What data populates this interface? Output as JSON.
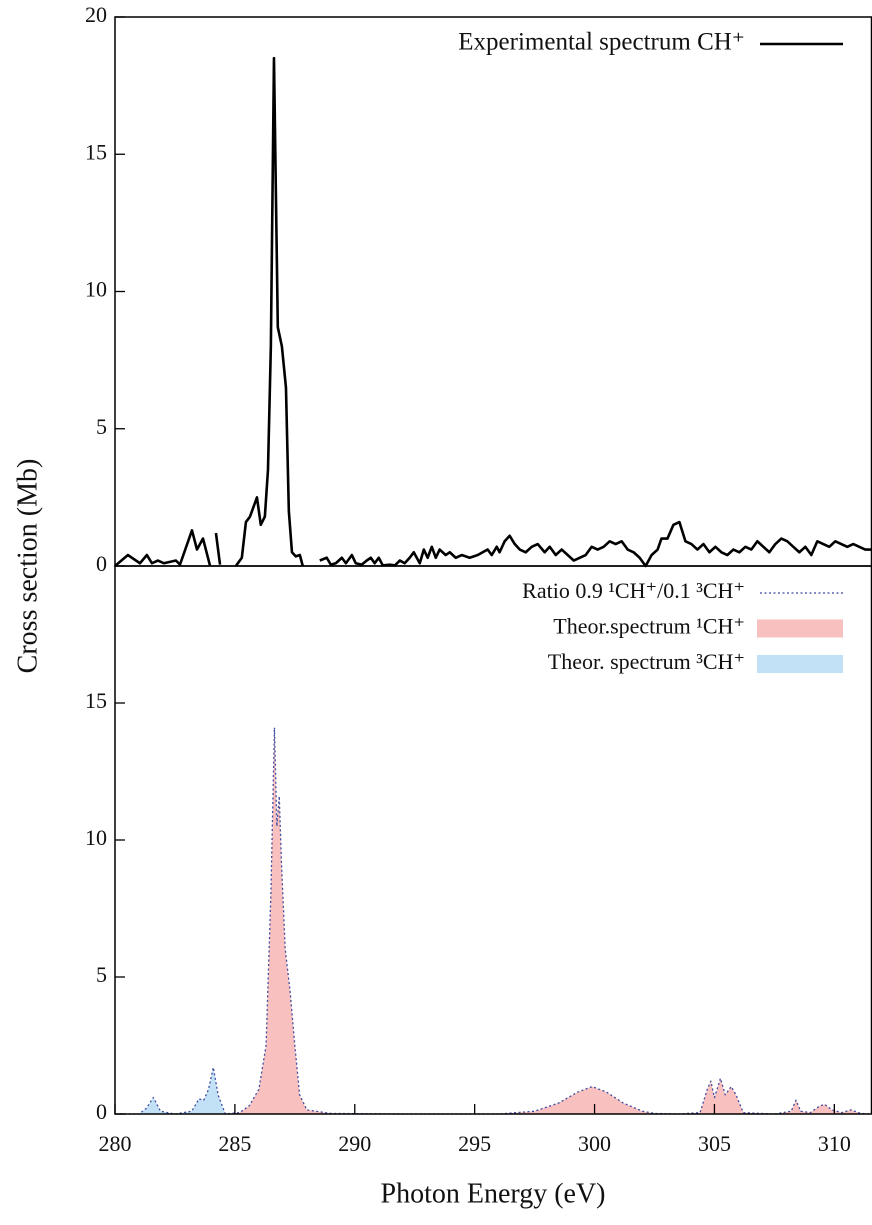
{
  "chart_data": [
    {
      "type": "line",
      "ylabel": "Cross section (Mb)",
      "xlim": [
        280,
        311.55
      ],
      "ylim": [
        0,
        20
      ],
      "yticks": [
        0,
        5,
        10,
        15,
        20
      ],
      "legend": "upper right",
      "x": [
        280,
        280.54,
        281.04,
        281.33,
        281.54,
        281.79,
        282.04,
        282.29,
        282.54,
        282.71,
        283.21,
        283.42,
        283.67,
        283.96,
        284.1,
        284.21,
        284.38,
        284.7,
        285.04,
        285.29,
        285.46,
        285.63,
        285.92,
        286.08,
        286.25,
        286.38,
        286.5,
        286.63,
        286.79,
        286.96,
        287.13,
        287.25,
        287.38,
        287.54,
        287.71,
        287.83,
        288.2,
        288.54,
        288.83,
        289,
        289.21,
        289.46,
        289.63,
        289.88,
        290.04,
        290.29,
        290.5,
        290.67,
        290.83,
        291,
        291.17,
        291.46,
        291.67,
        291.88,
        292.08,
        292.29,
        292.46,
        292.71,
        292.88,
        293.04,
        293.21,
        293.38,
        293.54,
        293.79,
        293.96,
        294.21,
        294.46,
        294.79,
        295.13,
        295.54,
        295.71,
        295.92,
        296.04,
        296.25,
        296.46,
        296.67,
        296.88,
        297.13,
        297.38,
        297.63,
        297.92,
        298.13,
        298.38,
        298.63,
        298.88,
        299.13,
        299.38,
        299.63,
        299.88,
        300.13,
        300.38,
        300.63,
        300.88,
        301.13,
        301.38,
        301.63,
        301.88,
        302.13,
        302.38,
        302.63,
        302.79,
        303.04,
        303.29,
        303.54,
        303.79,
        304.04,
        304.29,
        304.54,
        304.79,
        305.04,
        305.29,
        305.54,
        305.79,
        306.04,
        306.29,
        306.54,
        306.79,
        307.04,
        307.29,
        307.54,
        307.79,
        308.04,
        308.29,
        308.54,
        308.79,
        309.04,
        309.29,
        309.54,
        309.79,
        310.04,
        310.29,
        310.54,
        310.79,
        311.04,
        311.29,
        311.54
      ],
      "series": [
        {
          "name": "Experimental spectrum CH⁺",
          "color": "#000000",
          "style": "solid",
          "values": [
            0,
            0.4,
            0.1,
            0.4,
            0.1,
            0.2,
            0.1,
            0.15,
            0.2,
            0.05,
            1.3,
            0.6,
            1.0,
            0.02,
            null,
            1.2,
            0.05,
            null,
            0,
            0.3,
            1.6,
            1.8,
            2.5,
            1.5,
            1.8,
            3.5,
            8,
            18.5,
            8.7,
            8,
            6.5,
            2,
            0.5,
            0.35,
            0.4,
            0,
            null,
            0.2,
            0.3,
            0.05,
            0.1,
            0.3,
            0.1,
            0.4,
            0.1,
            0.05,
            0.2,
            0.3,
            0.1,
            0.3,
            0.02,
            0.05,
            0.02,
            0.2,
            0.1,
            0.3,
            0.5,
            0.1,
            0.6,
            0.3,
            0.7,
            0.3,
            0.6,
            0.4,
            0.5,
            0.3,
            0.4,
            0.3,
            0.4,
            0.6,
            0.4,
            0.7,
            0.5,
            0.9,
            1.1,
            0.8,
            0.6,
            0.5,
            0.7,
            0.8,
            0.5,
            0.7,
            0.4,
            0.6,
            0.4,
            0.2,
            0.3,
            0.4,
            0.7,
            0.6,
            0.7,
            0.9,
            0.8,
            0.9,
            0.6,
            0.5,
            0.3,
            0,
            0.4,
            0.6,
            1.0,
            1.0,
            1.5,
            1.6,
            0.9,
            0.8,
            0.6,
            0.8,
            0.5,
            0.7,
            0.5,
            0.4,
            0.6,
            0.5,
            0.7,
            0.6,
            0.9,
            0.7,
            0.5,
            0.8,
            1.0,
            0.9,
            0.7,
            0.5,
            0.7,
            0.4,
            0.9,
            0.8,
            0.7,
            0.9,
            0.8,
            0.7,
            0.8,
            0.7,
            0.6,
            0.6
          ]
        }
      ]
    },
    {
      "type": "area",
      "xlabel": "Photon Energy (eV)",
      "xlim": [
        280,
        311.55
      ],
      "xticks": [
        280,
        285,
        290,
        295,
        300,
        305,
        310
      ],
      "ylim": [
        0,
        20
      ],
      "yticks": [
        0,
        5,
        10,
        15
      ],
      "legend": "upper right",
      "x": [
        280,
        281,
        281.3,
        281.6,
        281.9,
        282.5,
        283.2,
        283.5,
        283.7,
        283.9,
        284.1,
        284.3,
        284.6,
        285.2,
        285.6,
        286.0,
        286.3,
        286.5,
        286.65,
        286.75,
        286.85,
        286.95,
        287.1,
        287.3,
        287.5,
        287.7,
        288.0,
        289,
        292,
        296,
        297.5,
        298.5,
        299.3,
        299.9,
        300.5,
        301.2,
        302,
        302.5,
        303.5,
        304.4,
        304.7,
        304.85,
        305.0,
        305.25,
        305.45,
        305.7,
        305.9,
        306.2,
        307.5,
        308.2,
        308.4,
        308.6,
        309.0,
        309.4,
        309.6,
        309.9,
        310.3,
        310.7,
        311.1,
        311.55
      ],
      "series": [
        {
          "name": "Ratio 0.9 ¹CH⁺/0.1 ³CH⁺",
          "color": "#3d4b9c",
          "style": "dotted",
          "values": [
            0,
            0,
            0.2,
            0.6,
            0.1,
            0,
            0.1,
            0.55,
            0.5,
            0.9,
            1.7,
            0.7,
            0,
            0.05,
            0.3,
            0.9,
            2.5,
            8,
            14.1,
            10.5,
            11.6,
            9,
            6,
            4.5,
            2.5,
            0.7,
            0.15,
            0.02,
            0,
            0,
            0.1,
            0.4,
            0.8,
            1.0,
            0.8,
            0.4,
            0.1,
            0.02,
            0,
            0.05,
            0.9,
            1.2,
            0.6,
            1.3,
            0.7,
            1.0,
            0.7,
            0.05,
            0,
            0.1,
            0.5,
            0.1,
            0.05,
            0.3,
            0.35,
            0.15,
            0.05,
            0.15,
            0.02,
            0
          ]
        },
        {
          "name": "Theor.spectrum ¹CH⁺",
          "color": "#f9c0c0",
          "style": "fill",
          "values": [
            0,
            0,
            0,
            0,
            0,
            0,
            0,
            0,
            0,
            0,
            0,
            0,
            0,
            0.05,
            0.3,
            0.9,
            2.5,
            8,
            14.1,
            10.5,
            11.6,
            9,
            6,
            4.5,
            2.5,
            0.7,
            0.15,
            0.02,
            0,
            0,
            0.1,
            0.4,
            0.8,
            1.0,
            0.8,
            0.4,
            0.1,
            0.02,
            0,
            0.05,
            0.9,
            1.2,
            0.6,
            1.3,
            0.7,
            1.0,
            0.7,
            0.05,
            0,
            0.1,
            0.5,
            0.1,
            0.05,
            0.3,
            0.35,
            0.15,
            0.05,
            0.15,
            0.02,
            0
          ]
        },
        {
          "name": "Theor. spectrum ³CH⁺",
          "color": "#c2e1f7",
          "style": "fill",
          "values": [
            0,
            0,
            0.2,
            0.6,
            0.1,
            0,
            0.1,
            0.55,
            0.5,
            0.9,
            1.7,
            0.7,
            0,
            0,
            0,
            0,
            0,
            0,
            0,
            0,
            0,
            0,
            0,
            0,
            0,
            0,
            0,
            0,
            0,
            0,
            0,
            0,
            0,
            0,
            0,
            0,
            0,
            0,
            0,
            0,
            0,
            0,
            0,
            0,
            0,
            0,
            0,
            0,
            0,
            0,
            0,
            0,
            0,
            0,
            0,
            0,
            0,
            0,
            0,
            0
          ]
        }
      ]
    }
  ]
}
